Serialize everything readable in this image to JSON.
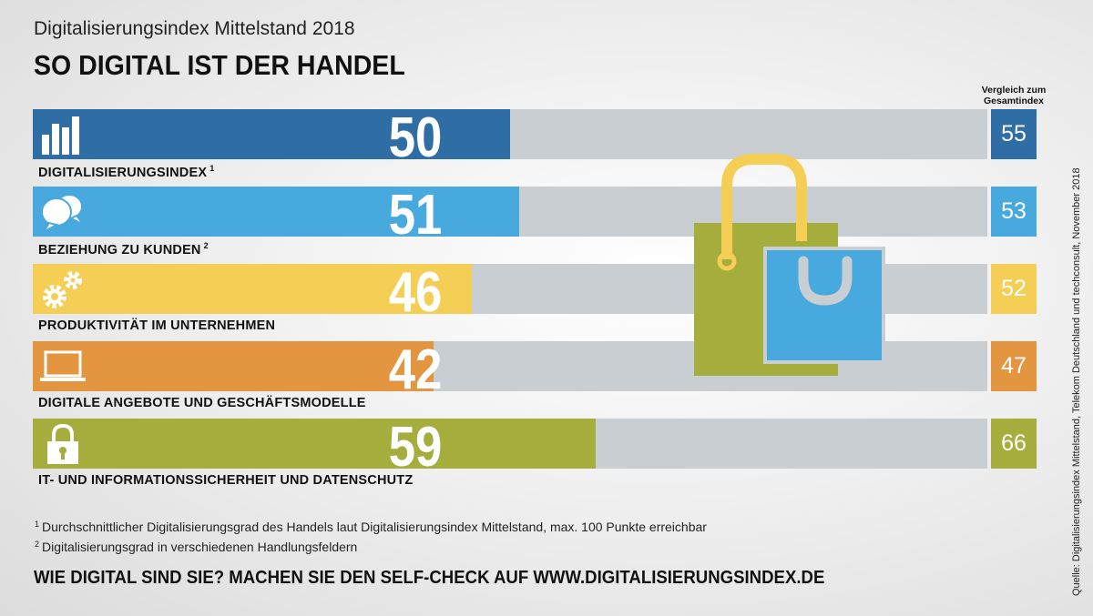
{
  "header": {
    "subtitle": "Digitalisierungsindex Mittelstand 2018",
    "title": "SO DIGITAL IST DER HANDEL"
  },
  "comparison_header": "Vergleich zum Gesamtindex",
  "chart_data": {
    "type": "bar",
    "orientation": "horizontal",
    "xlim": [
      0,
      100
    ],
    "categories": [
      "DIGITALISIERUNGSINDEX",
      "BEZIEHUNG ZU KUNDEN",
      "PRODUKTIVITÄT IM UNTERNEHMEN",
      "DIGITALE ANGEBOTE UND GESCHÄFTSMODELLE",
      "IT- UND INFORMATIONSSICHERHEIT UND DATENSCHUTZ"
    ],
    "footnote_marks": [
      "1",
      "2",
      "",
      "",
      ""
    ],
    "values": [
      50,
      51,
      46,
      42,
      59
    ],
    "comparison": [
      55,
      53,
      52,
      47,
      66
    ],
    "colors": [
      "#2f6ea5",
      "#47a9de",
      "#f5cf55",
      "#e39540",
      "#a5ad3c"
    ],
    "icons": [
      "bar-chart-icon",
      "speech-bubbles-icon",
      "gears-icon",
      "laptop-icon",
      "padlock-icon"
    ],
    "track_color": "#c9ced2"
  },
  "footnotes": [
    {
      "mark": "1",
      "text": "Durchschnittlicher Digitalisierungsgrad des Handels laut Digitalisierungsindex Mittelstand, max. 100 Punkte erreichbar"
    },
    {
      "mark": "2",
      "text": "Digitalisierungsgrad in verschiedenen Handlungsfeldern"
    }
  ],
  "cta": "WIE DIGITAL SIND SIE? MACHEN SIE DEN SELF-CHECK AUF WWW.DIGITALISIERUNGSINDEX.DE",
  "source": "Quelle: Digitalisierungsindex Mittelstand, Telekom Deutschland und techconsult, November 2018"
}
